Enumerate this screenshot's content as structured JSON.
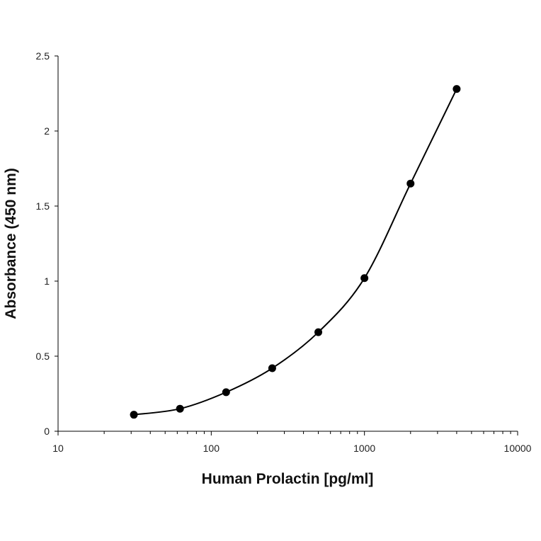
{
  "chart_data": {
    "type": "scatter",
    "title": "",
    "xlabel": "Human Prolactin [pg/ml]",
    "ylabel": "Absorbance (450 nm)",
    "x_scale": "log",
    "xlim": [
      10,
      10000
    ],
    "ylim": [
      0,
      2.5
    ],
    "x_ticks": [
      10,
      100,
      1000,
      10000
    ],
    "x_tick_labels": [
      "10",
      "100",
      "1000",
      "10000"
    ],
    "y_ticks": [
      0,
      0.5,
      1,
      1.5,
      2,
      2.5
    ],
    "y_tick_labels": [
      "0",
      "0.5",
      "1",
      "1.5",
      "2",
      "2.5"
    ],
    "grid": false,
    "legend": "none",
    "line": "smooth",
    "series": [
      {
        "x": [
          31.25,
          62.5,
          125,
          250,
          500,
          1000,
          2000,
          4000
        ],
        "y": [
          0.11,
          0.15,
          0.26,
          0.42,
          0.66,
          1.02,
          1.65,
          2.28
        ]
      }
    ],
    "colors": {
      "marker": "#000000",
      "line": "#000000",
      "axis": "#000000"
    }
  }
}
